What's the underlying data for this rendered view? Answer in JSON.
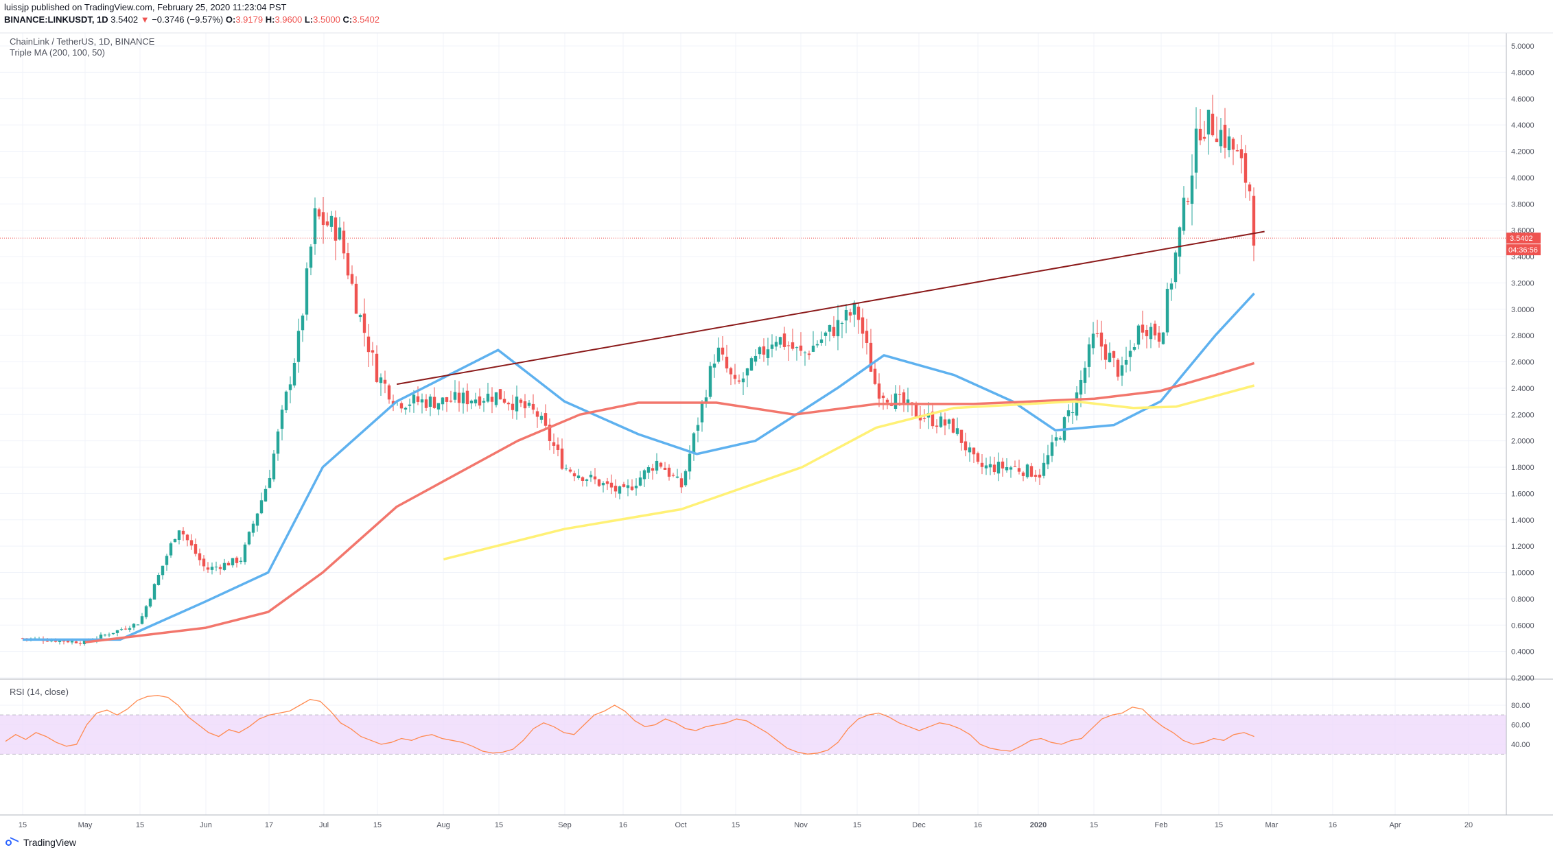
{
  "header": {
    "line1": "luissjp published on TradingView.com, February 25, 2020 11:23:04 PST",
    "symbol": "BINANCE:LINKUSDT, 1D",
    "price": "3.5402",
    "arrow": "▼",
    "change": "−0.3746 (−9.57%)",
    "o_label": "O:",
    "o": "3.9179",
    "h_label": "H:",
    "h": "3.9600",
    "l_label": "L:",
    "l": "3.5000",
    "c_label": "C:",
    "c": "3.5402"
  },
  "legend": {
    "title": "ChainLink / TetherUS, 1D, BINANCE",
    "indicator": "Triple MA (200, 100, 50)",
    "rsi": "RSI (14, close)"
  },
  "footer": {
    "brand": "TradingView"
  },
  "colors": {
    "up": "#26a69a",
    "down": "#ef5350",
    "ma50": "#5eb1ef",
    "ma100": "#f2766c",
    "ma200": "#fff176",
    "trendline": "#8b1a1a",
    "rsi": "#ff8a50",
    "rsi_band": "#efd9fb"
  },
  "chart_data": [
    {
      "type": "candlestick",
      "title": "ChainLink / TetherUS, 1D, BINANCE",
      "ylim": [
        0.2,
        5.0
      ],
      "y_ticks": [
        "5.0000",
        "4.8000",
        "4.6000",
        "4.4000",
        "4.2000",
        "4.0000",
        "3.8000",
        "3.6000",
        "3.4000",
        "3.2000",
        "3.0000",
        "2.8000",
        "2.6000",
        "2.4000",
        "2.2000",
        "2.0000",
        "1.8000",
        "1.6000",
        "1.4000",
        "1.2000",
        "1.0000",
        "0.8000",
        "0.6000",
        "0.4000",
        "0.2000"
      ],
      "x_ticks": [
        "15",
        "May",
        "15",
        "Jun",
        "17",
        "Jul",
        "15",
        "Aug",
        "15",
        "Sep",
        "16",
        "Oct",
        "15",
        "Nov",
        "15",
        "Dec",
        "16",
        "2020",
        "15",
        "Feb",
        "15",
        "Mar",
        "16",
        "Apr",
        "20"
      ],
      "last_price_label": "3.5402",
      "countdown_label": "04:36:56",
      "price_path": [
        [
          "Apr 15",
          0.5
        ],
        [
          "May 1",
          0.47
        ],
        [
          "May 15",
          0.62
        ],
        [
          "May 25",
          1.35
        ],
        [
          "Jun 1",
          1.02
        ],
        [
          "Jun 10",
          1.1
        ],
        [
          "Jun 17",
          1.7
        ],
        [
          "Jun 25",
          2.8
        ],
        [
          "Jun 29",
          3.7
        ],
        [
          "Jul 5",
          3.6
        ],
        [
          "Jul 10",
          3.0
        ],
        [
          "Jul 15",
          2.5
        ],
        [
          "Jul 20",
          2.3
        ],
        [
          "Aug 1",
          2.3
        ],
        [
          "Aug 15",
          2.35
        ],
        [
          "Aug 25",
          2.2
        ],
        [
          "Sep 1",
          1.8
        ],
        [
          "Sep 16",
          1.6
        ],
        [
          "Sep 25",
          1.85
        ],
        [
          "Oct 1",
          1.65
        ],
        [
          "Oct 10",
          2.7
        ],
        [
          "Oct 15",
          2.4
        ],
        [
          "Oct 25",
          2.8
        ],
        [
          "Nov 1",
          2.65
        ],
        [
          "Nov 15",
          3.0
        ],
        [
          "Nov 20",
          2.4
        ],
        [
          "Dec 1",
          2.2
        ],
        [
          "Dec 10",
          2.1
        ],
        [
          "Dec 16",
          1.8
        ],
        [
          "Dec 25",
          1.8
        ],
        [
          "Jan 1",
          1.75
        ],
        [
          "Jan 10",
          2.3
        ],
        [
          "Jan 15",
          2.8
        ],
        [
          "Jan 22",
          2.5
        ],
        [
          "Jan 27",
          2.9
        ],
        [
          "Feb 1",
          2.8
        ],
        [
          "Feb 6",
          3.6
        ],
        [
          "Feb 11",
          4.4
        ],
        [
          "Feb 15",
          4.4
        ],
        [
          "Feb 20",
          4.2
        ],
        [
          "Feb 24",
          3.9
        ],
        [
          "Feb 25",
          3.54
        ]
      ],
      "series": [
        {
          "name": "MA 50",
          "values": [
            [
              "Apr 15",
              0.49
            ],
            [
              "May 10",
              0.49
            ],
            [
              "Jun 1",
              0.78
            ],
            [
              "Jun 17",
              1.0
            ],
            [
              "Jul 1",
              1.8
            ],
            [
              "Jul 20",
              2.3
            ],
            [
              "Aug 15",
              2.69
            ],
            [
              "Sep 1",
              2.3
            ],
            [
              "Sep 20",
              2.05
            ],
            [
              "Oct 5",
              1.9
            ],
            [
              "Oct 20",
              2.0
            ],
            [
              "Nov 10",
              2.4
            ],
            [
              "Nov 22",
              2.65
            ],
            [
              "Dec 10",
              2.5
            ],
            [
              "Dec 25",
              2.3
            ],
            [
              "Jan 5",
              2.08
            ],
            [
              "Jan 20",
              2.12
            ],
            [
              "Feb 1",
              2.3
            ],
            [
              "Feb 15",
              2.8
            ],
            [
              "Feb 25",
              3.12
            ]
          ]
        },
        {
          "name": "MA 100",
          "values": [
            [
              "May 1",
              0.47
            ],
            [
              "Jun 1",
              0.58
            ],
            [
              "Jun 17",
              0.7
            ],
            [
              "Jul 1",
              1.0
            ],
            [
              "Jul 20",
              1.5
            ],
            [
              "Aug 20",
              2.0
            ],
            [
              "Sep 5",
              2.2
            ],
            [
              "Sep 20",
              2.29
            ],
            [
              "Oct 10",
              2.29
            ],
            [
              "Oct 30",
              2.2
            ],
            [
              "Nov 20",
              2.28
            ],
            [
              "Dec 15",
              2.28
            ],
            [
              "Jan 15",
              2.32
            ],
            [
              "Feb 1",
              2.38
            ],
            [
              "Feb 15",
              2.5
            ],
            [
              "Feb 25",
              2.59
            ]
          ]
        },
        {
          "name": "MA 200",
          "values": [
            [
              "Aug 1",
              1.1
            ],
            [
              "Sep 1",
              1.33
            ],
            [
              "Oct 1",
              1.48
            ],
            [
              "Nov 1",
              1.8
            ],
            [
              "Nov 20",
              2.1
            ],
            [
              "Dec 10",
              2.25
            ],
            [
              "Jan 10",
              2.3
            ],
            [
              "Jan 25",
              2.25
            ],
            [
              "Feb 5",
              2.26
            ],
            [
              "Feb 25",
              2.42
            ]
          ]
        }
      ],
      "trendline": [
        [
          "Jul 20",
          2.43
        ],
        [
          "Feb 25",
          3.58
        ]
      ]
    },
    {
      "type": "line",
      "title": "RSI (14, close)",
      "ylim": [
        27,
        94
      ],
      "y_ticks": [
        "80.00",
        "60.00",
        "40.00"
      ],
      "band": [
        30,
        70
      ],
      "values": [
        43,
        50,
        45,
        52,
        48,
        42,
        38,
        40,
        60,
        72,
        75,
        70,
        76,
        85,
        89,
        90,
        88,
        80,
        68,
        60,
        52,
        48,
        55,
        52,
        58,
        66,
        70,
        72,
        74,
        80,
        86,
        84,
        74,
        62,
        56,
        48,
        44,
        40,
        42,
        46,
        44,
        48,
        50,
        46,
        44,
        42,
        38,
        33,
        31,
        32,
        35,
        44,
        56,
        62,
        58,
        52,
        50,
        60,
        70,
        74,
        80,
        74,
        64,
        58,
        60,
        66,
        62,
        56,
        54,
        58,
        60,
        62,
        66,
        64,
        58,
        52,
        44,
        36,
        32,
        30,
        31,
        34,
        42,
        56,
        66,
        70,
        72,
        68,
        62,
        58,
        54,
        58,
        62,
        60,
        56,
        50,
        40,
        36,
        34,
        33,
        38,
        44,
        46,
        42,
        40,
        44,
        46,
        56,
        66,
        70,
        72,
        78,
        76,
        66,
        58,
        52,
        44,
        40,
        42,
        46,
        44,
        50,
        52,
        48
      ]
    }
  ]
}
